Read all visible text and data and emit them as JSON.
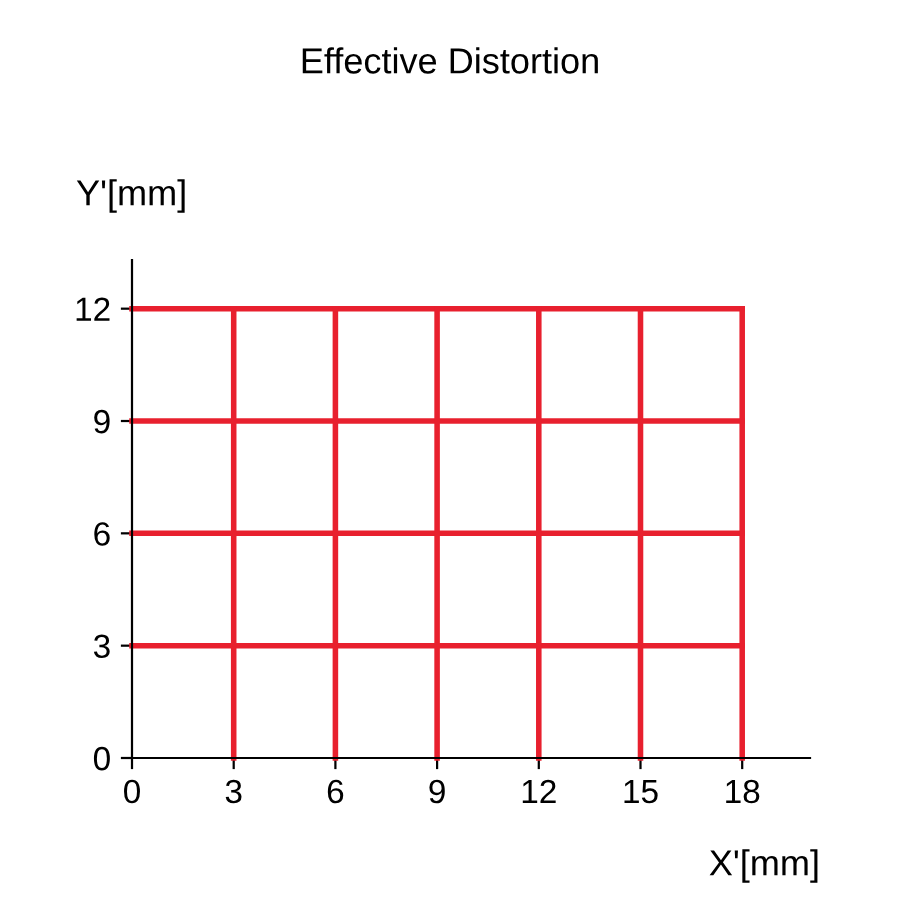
{
  "chart_data": {
    "type": "line",
    "title": "Effective Distortion",
    "xlabel": "X'[mm]",
    "ylabel": "Y'[mm]",
    "series": [
      {
        "x": [
          0,
          18
        ],
        "values": [
          3,
          3
        ],
        "color": "#e8202e"
      },
      {
        "x": [
          0,
          18
        ],
        "values": [
          6,
          6
        ],
        "color": "#e8202e"
      },
      {
        "x": [
          0,
          18
        ],
        "values": [
          9,
          9
        ],
        "color": "#e8202e"
      },
      {
        "x": [
          0,
          18
        ],
        "values": [
          12,
          12
        ],
        "color": "#e8202e"
      },
      {
        "x": [
          3,
          3
        ],
        "values": [
          0,
          12
        ],
        "color": "#e8202e"
      },
      {
        "x": [
          6,
          6
        ],
        "values": [
          0,
          12
        ],
        "color": "#e8202e"
      },
      {
        "x": [
          9,
          9
        ],
        "values": [
          0,
          12
        ],
        "color": "#e8202e"
      },
      {
        "x": [
          12,
          12
        ],
        "values": [
          0,
          12
        ],
        "color": "#e8202e"
      },
      {
        "x": [
          15,
          15
        ],
        "values": [
          0,
          12
        ],
        "color": "#e8202e"
      },
      {
        "x": [
          18,
          18
        ],
        "values": [
          0,
          12
        ],
        "color": "#e8202e"
      }
    ],
    "xlim": [
      0,
      20
    ],
    "ylim": [
      0,
      13.3
    ],
    "xticks": [
      0,
      3,
      6,
      9,
      12,
      15,
      18
    ],
    "yticks": [
      0,
      3,
      6,
      9,
      12
    ],
    "grid": false,
    "legend": false,
    "marker": "none",
    "line_style": "solid"
  }
}
